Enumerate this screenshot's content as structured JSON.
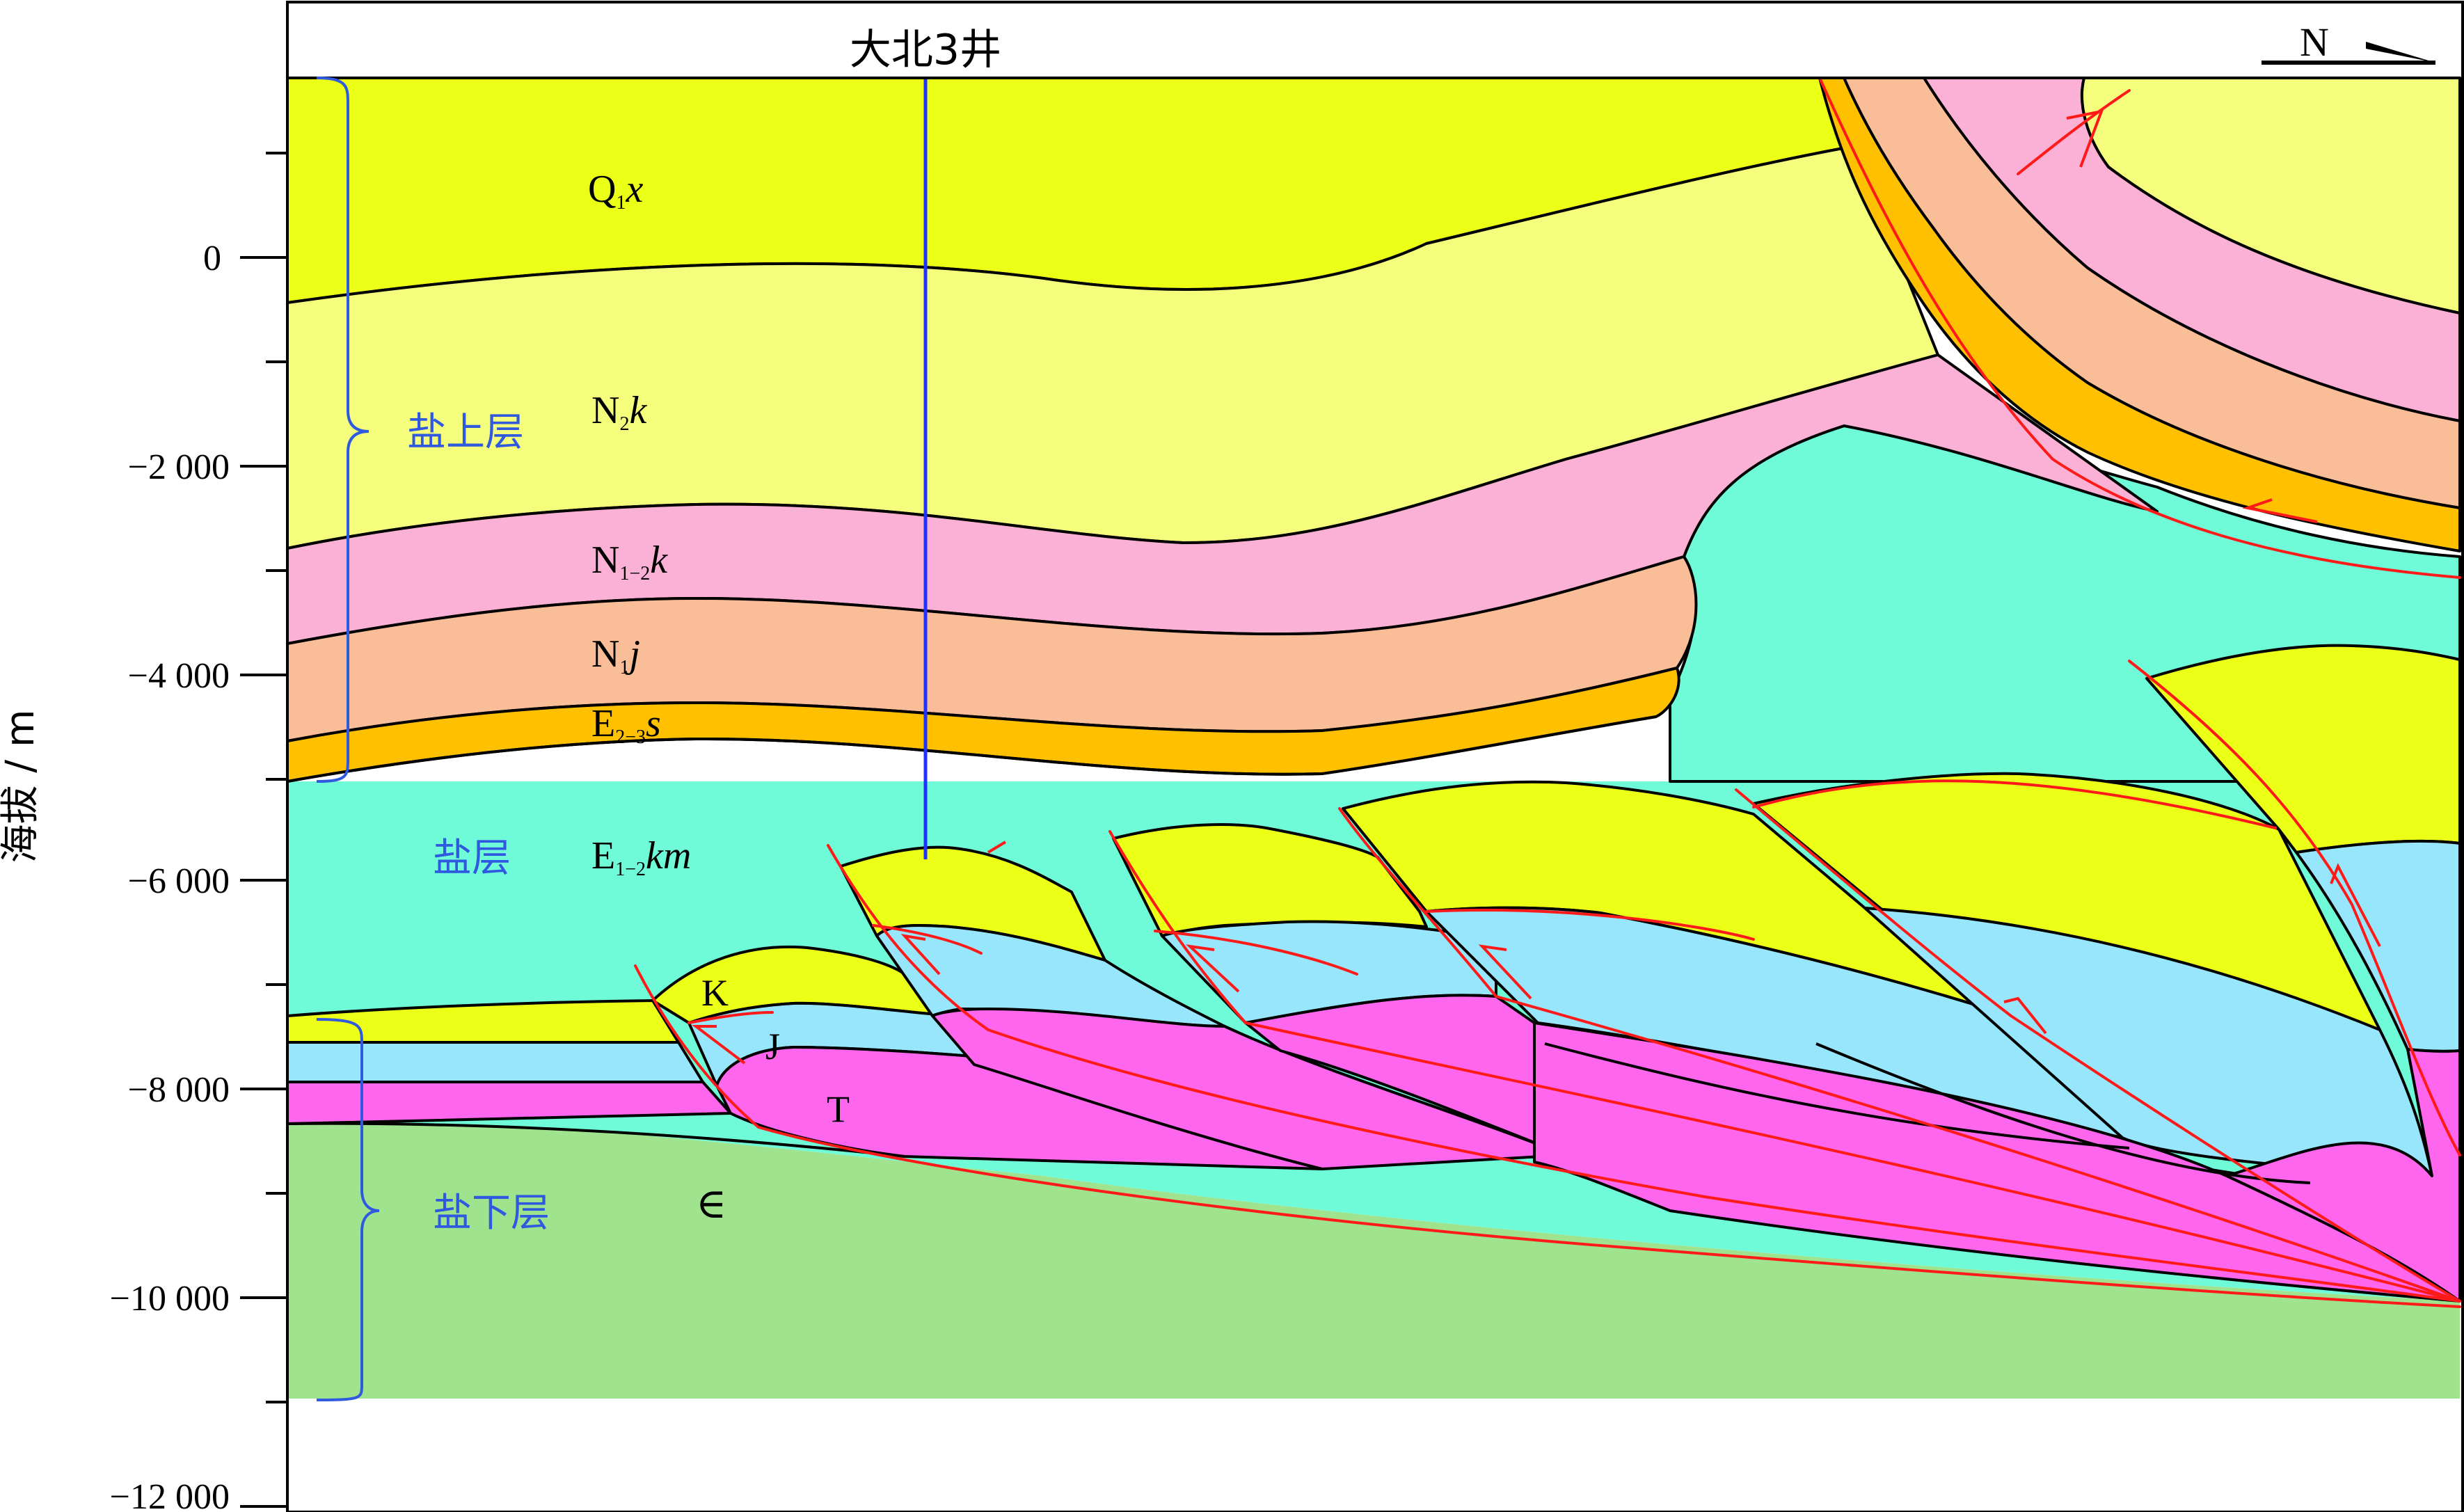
{
  "well_label": "大北3井",
  "north_arrow": "N",
  "y_axis": {
    "title": "海拔 / m",
    "ticks": [
      "0",
      "−2 000",
      "−4 000",
      "−6 000",
      "−8 000",
      "−10 000",
      "−12 000"
    ]
  },
  "groups": {
    "upper": "盐上层",
    "salt": "盐层",
    "lower": "盐下层"
  },
  "formations": {
    "q1x_base": "Q",
    "q1x_sub": "1",
    "q1x_ital": "x",
    "n2k_base": "N",
    "n2k_sub": "2",
    "n2k_ital": "k",
    "n12k_base": "N",
    "n12k_sub": "1−2",
    "n12k_ital": "k",
    "n1j_base": "N",
    "n1j_sub": "1",
    "n1j_ital": "j",
    "e23s_base": "E",
    "e23s_sub": "2−3",
    "e23s_ital": "s",
    "e12km_base": "E",
    "e12km_sub": "1−2",
    "e12km_ital": "km",
    "k": "K",
    "j": "J",
    "t": "T",
    "cambrian": "∈"
  },
  "colors": {
    "q1x": "#ecff17",
    "n2k": "#f4fd7c",
    "n12k": "#fbb0d5",
    "n1j": "#f9bd97",
    "e23s": "#ffc000",
    "salt": "#6ffbd8",
    "k": "#ecff17",
    "j": "#97e6fb",
    "t": "#ff66ee",
    "cambrian": "#a0e38f",
    "fault": "#ff1a1a",
    "well": "#1f33ff",
    "bracket": "#2f5ae0"
  }
}
